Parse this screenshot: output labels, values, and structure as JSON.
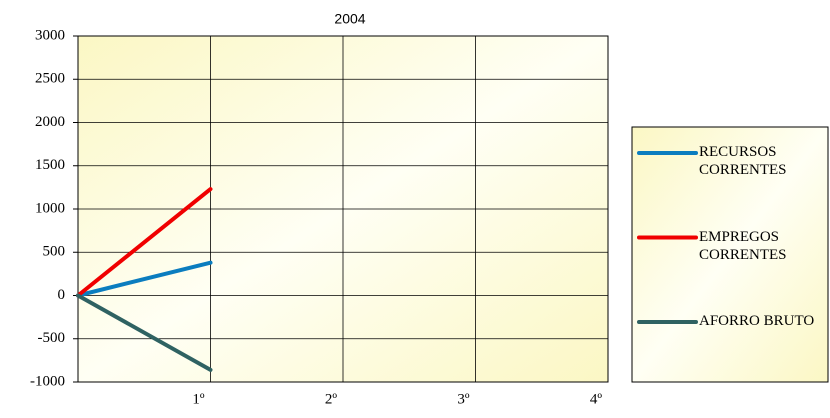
{
  "chart_data": {
    "type": "line",
    "title": "2004",
    "categories": [
      null,
      "1º",
      "2º",
      "3º",
      "4º"
    ],
    "series": [
      {
        "name": "RECURSOS CORRENTES",
        "color": "#0b7dbf",
        "values": [
          0,
          380,
          null,
          null,
          null
        ]
      },
      {
        "name": "EMPREGOS CORRENTES",
        "color": "#f00000",
        "values": [
          0,
          1230,
          null,
          null,
          null
        ]
      },
      {
        "name": "AFORRO BRUTO",
        "color": "#2f6262",
        "values": [
          0,
          -860,
          null,
          null,
          null
        ]
      }
    ],
    "ylim": [
      -1000,
      3000
    ],
    "yticks": [
      -1000,
      -500,
      0,
      500,
      1000,
      1500,
      2000,
      2500,
      3000
    ],
    "grid": true,
    "legend": "right"
  }
}
